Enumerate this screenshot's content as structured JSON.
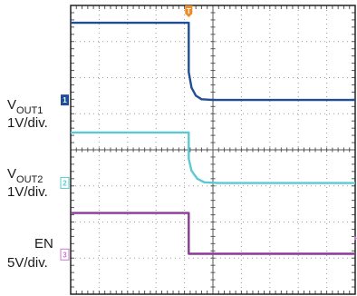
{
  "chart_data": {
    "type": "line",
    "title": "",
    "xlabel": "",
    "ylabel": "",
    "grid": true,
    "x": {
      "divisions": 10,
      "range": [
        0,
        10
      ]
    },
    "y": {
      "divisions": 8,
      "range": [
        0,
        8
      ]
    },
    "trigger": {
      "label": "T",
      "x": 4.15,
      "color": "#f08a24"
    },
    "series": [
      {
        "channel": "1",
        "label_main": "V",
        "label_sub": "OUT1",
        "scale": "1V/div.",
        "color": "#1f4e96",
        "marker_color": "#1f4e96",
        "marker_y": 5.38,
        "points": [
          [
            0,
            7.52
          ],
          [
            4.15,
            7.52
          ],
          [
            4.15,
            6.15
          ],
          [
            4.25,
            5.72
          ],
          [
            4.4,
            5.5
          ],
          [
            4.6,
            5.4
          ],
          [
            5.0,
            5.38
          ],
          [
            10,
            5.38
          ]
        ]
      },
      {
        "channel": "2",
        "label_main": "V",
        "label_sub": "OUT2",
        "scale": "1V/div.",
        "color": "#5bc9d2",
        "marker_color": "#5bc9d2",
        "marker_y": 3.08,
        "points": [
          [
            0,
            4.48
          ],
          [
            4.15,
            4.48
          ],
          [
            4.15,
            3.75
          ],
          [
            4.25,
            3.42
          ],
          [
            4.45,
            3.2
          ],
          [
            4.7,
            3.1
          ],
          [
            5.2,
            3.08
          ],
          [
            10,
            3.08
          ]
        ]
      },
      {
        "channel": "3",
        "label_main": "EN",
        "label_sub": "",
        "scale": "5V/div.",
        "color": "#8a3a96",
        "marker_color": "#c77ad0",
        "marker_y": 1.1,
        "points": [
          [
            0,
            2.25
          ],
          [
            4.15,
            2.25
          ],
          [
            4.15,
            1.12
          ],
          [
            10,
            1.12
          ]
        ]
      }
    ]
  }
}
